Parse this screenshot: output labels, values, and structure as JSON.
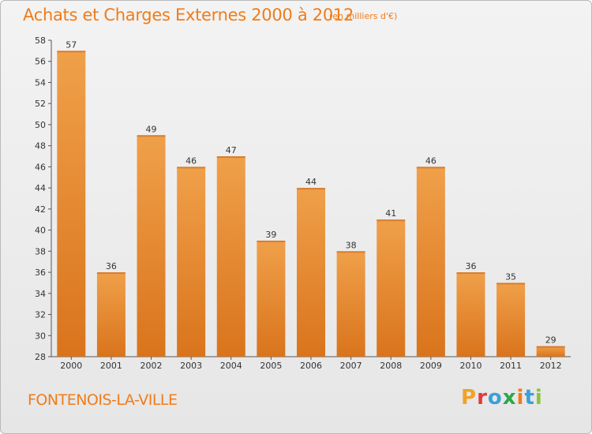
{
  "header": {
    "title": "Achats et Charges Externes 2000 à 2012",
    "unit": "(en milliers d'€)"
  },
  "footer": {
    "place": "FONTENOIS-LA-VILLE",
    "brand_letters": [
      "P",
      "r",
      "o",
      "x",
      "i",
      "t",
      "i"
    ],
    "brand_colors": [
      "#f0a22a",
      "#e23b3b",
      "#3aa0d8",
      "#2aa84a",
      "#f07c1a",
      "#3aa0d8",
      "#8ac43a"
    ]
  },
  "chart_data": {
    "type": "bar",
    "categories": [
      "2000",
      "2001",
      "2002",
      "2003",
      "2004",
      "2005",
      "2006",
      "2007",
      "2008",
      "2009",
      "2010",
      "2011",
      "2012"
    ],
    "values": [
      57,
      36,
      49,
      46,
      47,
      39,
      44,
      38,
      41,
      46,
      36,
      35,
      29
    ],
    "data_labels": [
      "57",
      "36",
      "49",
      "46",
      "47",
      "39",
      "44",
      "38",
      "41",
      "46",
      "36",
      "35",
      "29"
    ],
    "yticks": [
      "28",
      "30",
      "32",
      "34",
      "36",
      "38",
      "40",
      "42",
      "44",
      "46",
      "48",
      "50",
      "52",
      "54",
      "56",
      "58"
    ],
    "ylim": [
      28,
      58
    ],
    "ytick_step": 2,
    "grid": false,
    "bar_color": "#f0a04a",
    "bar_color_dark": "#d9741c",
    "text_color": "#333333"
  }
}
